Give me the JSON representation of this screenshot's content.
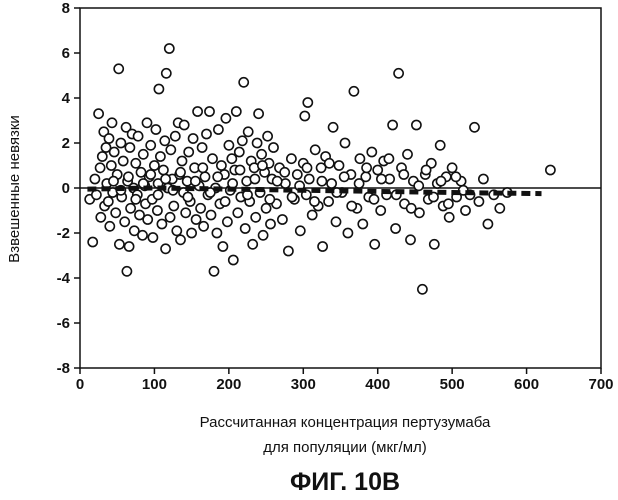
{
  "chart_data": {
    "type": "scatter",
    "title": "",
    "xlabel": [
      "Рассчитанная концентрация пертузумаба",
      "для популяции (мкг/мл)"
    ],
    "ylabel": "Взвешенные невязки",
    "xlim": [
      0,
      700
    ],
    "ylim": [
      -8,
      8
    ],
    "x_ticks": [
      0,
      100,
      200,
      300,
      400,
      500,
      600,
      700
    ],
    "y_ticks": [
      8,
      6,
      4,
      2,
      0,
      -2,
      -4,
      -6,
      -8
    ],
    "x_tick_labels": [
      "0",
      "100",
      "200",
      "300",
      "400",
      "500",
      "600",
      "700"
    ],
    "y_tick_labels": [
      "8",
      "6",
      "4",
      "2",
      "0",
      "-2",
      "-4",
      "-6",
      "-8"
    ],
    "reference_line_y": 0,
    "grid": false,
    "legend": "none",
    "marker": "open-circle",
    "trend_line": {
      "style": "thick-dashed",
      "points": [
        [
          10,
          -0.05
        ],
        [
          100,
          0.0
        ],
        [
          200,
          -0.05
        ],
        [
          300,
          -0.1
        ],
        [
          400,
          -0.15
        ],
        [
          500,
          -0.2
        ],
        [
          620,
          -0.25
        ]
      ]
    },
    "points": [
      [
        13,
        -0.5
      ],
      [
        17,
        -2.4
      ],
      [
        20,
        0.4
      ],
      [
        22,
        -0.3
      ],
      [
        25,
        3.3
      ],
      [
        27,
        0.9
      ],
      [
        28,
        -1.3
      ],
      [
        30,
        1.4
      ],
      [
        32,
        2.5
      ],
      [
        33,
        -0.8
      ],
      [
        35,
        1.8
      ],
      [
        36,
        0.2
      ],
      [
        38,
        -0.6
      ],
      [
        39,
        2.2
      ],
      [
        40,
        -1.7
      ],
      [
        42,
        1.0
      ],
      [
        43,
        2.9
      ],
      [
        44,
        -0.2
      ],
      [
        46,
        1.6
      ],
      [
        48,
        -1.1
      ],
      [
        50,
        0.6
      ],
      [
        52,
        5.3
      ],
      [
        53,
        -2.5
      ],
      [
        55,
        2.0
      ],
      [
        56,
        -0.4
      ],
      [
        58,
        1.2
      ],
      [
        60,
        -1.5
      ],
      [
        62,
        2.7
      ],
      [
        63,
        -3.7
      ],
      [
        64,
        0.3
      ],
      [
        66,
        -2.6
      ],
      [
        67,
        1.8
      ],
      [
        68,
        -0.9
      ],
      [
        70,
        2.4
      ],
      [
        72,
        0.0
      ],
      [
        73,
        -1.9
      ],
      [
        75,
        1.1
      ],
      [
        77,
        -0.3
      ],
      [
        78,
        2.3
      ],
      [
        80,
        -1.2
      ],
      [
        82,
        0.7
      ],
      [
        84,
        -2.1
      ],
      [
        85,
        1.5
      ],
      [
        87,
        0.1
      ],
      [
        88,
        -0.7
      ],
      [
        90,
        2.9
      ],
      [
        91,
        -1.4
      ],
      [
        93,
        0.5
      ],
      [
        95,
        1.9
      ],
      [
        97,
        -0.5
      ],
      [
        98,
        -2.2
      ],
      [
        100,
        1.0
      ],
      [
        102,
        2.6
      ],
      [
        104,
        -1.0
      ],
      [
        105,
        0.2
      ],
      [
        106,
        4.4
      ],
      [
        108,
        1.4
      ],
      [
        110,
        -1.6
      ],
      [
        112,
        0.8
      ],
      [
        114,
        2.1
      ],
      [
        115,
        -2.7
      ],
      [
        116,
        5.1
      ],
      [
        118,
        0.0
      ],
      [
        120,
        6.2
      ],
      [
        121,
        -1.3
      ],
      [
        122,
        1.7
      ],
      [
        124,
        0.4
      ],
      [
        126,
        -0.8
      ],
      [
        128,
        2.3
      ],
      [
        130,
        -1.9
      ],
      [
        132,
        2.9
      ],
      [
        134,
        0.6
      ],
      [
        135,
        -2.3
      ],
      [
        137,
        1.2
      ],
      [
        139,
        -0.2
      ],
      [
        140,
        2.8
      ],
      [
        142,
        -1.1
      ],
      [
        144,
        0.3
      ],
      [
        146,
        1.6
      ],
      [
        148,
        -0.6
      ],
      [
        150,
        -2.0
      ],
      [
        152,
        2.2
      ],
      [
        154,
        0.9
      ],
      [
        156,
        -1.4
      ],
      [
        158,
        3.4
      ],
      [
        160,
        0.1
      ],
      [
        162,
        -0.9
      ],
      [
        164,
        1.8
      ],
      [
        166,
        -1.7
      ],
      [
        168,
        0.5
      ],
      [
        170,
        2.4
      ],
      [
        172,
        -0.3
      ],
      [
        174,
        3.4
      ],
      [
        176,
        -1.2
      ],
      [
        178,
        1.3
      ],
      [
        180,
        -3.7
      ],
      [
        182,
        0.0
      ],
      [
        184,
        -2.0
      ],
      [
        186,
        2.6
      ],
      [
        188,
        -0.7
      ],
      [
        190,
        1.0
      ],
      [
        192,
        -2.6
      ],
      [
        194,
        0.6
      ],
      [
        196,
        3.1
      ],
      [
        198,
        -1.5
      ],
      [
        200,
        1.9
      ],
      [
        202,
        -0.1
      ],
      [
        204,
        1.3
      ],
      [
        206,
        -3.2
      ],
      [
        208,
        0.8
      ],
      [
        210,
        3.4
      ],
      [
        212,
        -1.1
      ],
      [
        214,
        1.6
      ],
      [
        216,
        -0.4
      ],
      [
        218,
        2.1
      ],
      [
        220,
        4.7
      ],
      [
        222,
        -1.8
      ],
      [
        224,
        0.3
      ],
      [
        226,
        2.5
      ],
      [
        228,
        -0.6
      ],
      [
        230,
        1.2
      ],
      [
        232,
        -2.5
      ],
      [
        234,
        0.9
      ],
      [
        236,
        -1.3
      ],
      [
        238,
        2.0
      ],
      [
        240,
        3.3
      ],
      [
        242,
        -0.2
      ],
      [
        244,
        1.5
      ],
      [
        246,
        -2.1
      ],
      [
        248,
        0.7
      ],
      [
        250,
        -0.9
      ],
      [
        252,
        2.3
      ],
      [
        254,
        1.1
      ],
      [
        256,
        -1.6
      ],
      [
        258,
        0.4
      ],
      [
        260,
        1.8
      ],
      [
        264,
        -0.7
      ],
      [
        268,
        0.9
      ],
      [
        272,
        -1.4
      ],
      [
        276,
        0.2
      ],
      [
        280,
        -2.8
      ],
      [
        284,
        1.3
      ],
      [
        288,
        -0.5
      ],
      [
        292,
        0.6
      ],
      [
        296,
        -1.9
      ],
      [
        300,
        1.1
      ],
      [
        302,
        3.2
      ],
      [
        304,
        -0.3
      ],
      [
        306,
        3.8
      ],
      [
        308,
        0.4
      ],
      [
        312,
        -1.2
      ],
      [
        316,
        1.7
      ],
      [
        320,
        -0.8
      ],
      [
        324,
        0.9
      ],
      [
        326,
        -2.6
      ],
      [
        330,
        1.4
      ],
      [
        334,
        -0.6
      ],
      [
        338,
        0.2
      ],
      [
        340,
        2.7
      ],
      [
        344,
        -1.5
      ],
      [
        348,
        1.0
      ],
      [
        352,
        -0.2
      ],
      [
        356,
        2.0
      ],
      [
        360,
        -2.0
      ],
      [
        364,
        0.6
      ],
      [
        368,
        4.3
      ],
      [
        372,
        -0.9
      ],
      [
        376,
        1.3
      ],
      [
        380,
        -1.6
      ],
      [
        384,
        0.5
      ],
      [
        388,
        -0.4
      ],
      [
        392,
        1.6
      ],
      [
        396,
        -2.5
      ],
      [
        400,
        0.8
      ],
      [
        404,
        -1.0
      ],
      [
        408,
        1.2
      ],
      [
        412,
        -0.3
      ],
      [
        416,
        0.4
      ],
      [
        420,
        2.8
      ],
      [
        424,
        -1.8
      ],
      [
        428,
        5.1
      ],
      [
        432,
        0.9
      ],
      [
        436,
        -0.7
      ],
      [
        440,
        1.5
      ],
      [
        444,
        -2.3
      ],
      [
        448,
        0.3
      ],
      [
        452,
        2.8
      ],
      [
        456,
        -1.1
      ],
      [
        460,
        -4.5
      ],
      [
        464,
        0.6
      ],
      [
        468,
        -0.5
      ],
      [
        472,
        1.1
      ],
      [
        476,
        -2.5
      ],
      [
        480,
        0.2
      ],
      [
        484,
        1.9
      ],
      [
        488,
        -0.8
      ],
      [
        492,
        0.5
      ],
      [
        496,
        -1.3
      ],
      [
        500,
        0.9
      ],
      [
        506,
        -0.4
      ],
      [
        512,
        0.3
      ],
      [
        518,
        -1.0
      ],
      [
        524,
        -0.3
      ],
      [
        530,
        2.7
      ],
      [
        536,
        -0.6
      ],
      [
        542,
        0.4
      ],
      [
        548,
        -1.6
      ],
      [
        556,
        -0.3
      ],
      [
        564,
        -0.9
      ],
      [
        574,
        -0.2
      ],
      [
        632,
        0.8
      ],
      [
        45,
        0.3
      ],
      [
        55,
        -0.1
      ],
      [
        65,
        0.5
      ],
      [
        75,
        -0.5
      ],
      [
        85,
        0.2
      ],
      [
        95,
        0.6
      ],
      [
        105,
        -0.3
      ],
      [
        115,
        0.4
      ],
      [
        125,
        -0.1
      ],
      [
        135,
        0.7
      ],
      [
        145,
        -0.4
      ],
      [
        155,
        0.3
      ],
      [
        165,
        0.9
      ],
      [
        175,
        -0.2
      ],
      [
        185,
        0.5
      ],
      [
        195,
        -0.6
      ],
      [
        205,
        0.2
      ],
      [
        215,
        0.8
      ],
      [
        225,
        -0.3
      ],
      [
        235,
        0.4
      ],
      [
        245,
        1.0
      ],
      [
        255,
        -0.5
      ],
      [
        265,
        0.3
      ],
      [
        275,
        0.7
      ],
      [
        285,
        -0.4
      ],
      [
        295,
        0.1
      ],
      [
        305,
        0.9
      ],
      [
        315,
        -0.6
      ],
      [
        325,
        0.3
      ],
      [
        335,
        1.1
      ],
      [
        345,
        -0.2
      ],
      [
        355,
        0.5
      ],
      [
        365,
        -0.8
      ],
      [
        375,
        0.2
      ],
      [
        385,
        0.9
      ],
      [
        395,
        -0.5
      ],
      [
        405,
        0.4
      ],
      [
        415,
        1.3
      ],
      [
        425,
        -0.3
      ],
      [
        435,
        0.6
      ],
      [
        445,
        -0.9
      ],
      [
        455,
        0.1
      ],
      [
        465,
        0.8
      ],
      [
        475,
        -0.4
      ],
      [
        485,
        0.3
      ],
      [
        495,
        -0.7
      ],
      [
        505,
        0.5
      ],
      [
        515,
        -0.1
      ]
    ]
  },
  "figure_caption": "ФИГ. 10В"
}
